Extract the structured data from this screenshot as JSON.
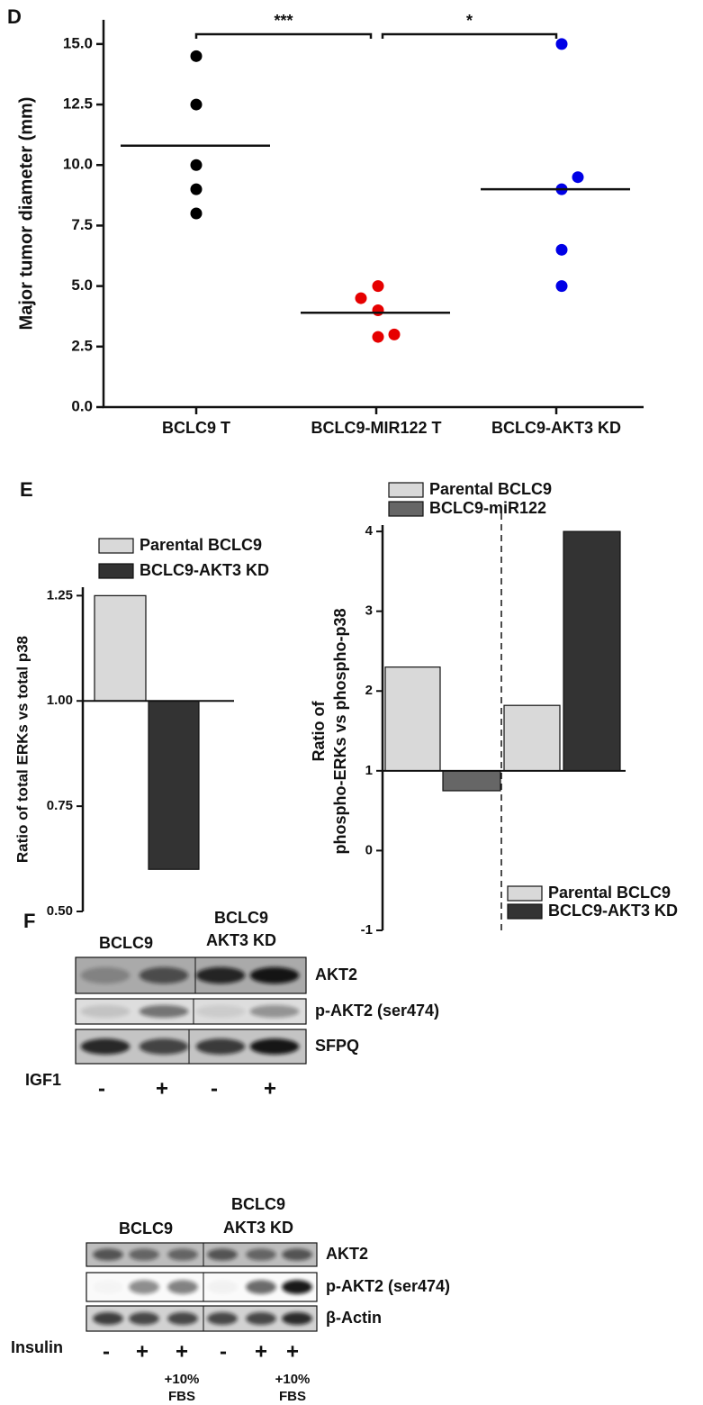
{
  "chart_data": [
    {
      "type": "dot",
      "panel_label": "D",
      "y_label": "Major tumor diameter (mm)",
      "categories": [
        "BCLC9 T",
        "BCLC9-MIR122 T",
        "BCLC9-AKT3 KD"
      ],
      "values": [
        [
          14.5,
          12.5,
          10,
          9,
          8
        ],
        [
          5,
          4.5,
          4,
          2.9,
          3
        ],
        [
          15,
          9.5,
          9,
          6.5,
          5
        ]
      ],
      "colors": [
        "#000000",
        "#e60000",
        "#0000e6"
      ],
      "means": [
        10.8,
        3.9,
        9.0
      ],
      "annotations": [
        "***",
        "*"
      ],
      "ylim": [
        0,
        16
      ],
      "yticks": [
        {
          "value": 0,
          "label": "0.0"
        },
        {
          "value": 2.5,
          "label": "2.5"
        },
        {
          "value": 5,
          "label": "5.0"
        },
        {
          "value": 7.5,
          "label": "7.5"
        },
        {
          "value": 10,
          "label": "10.0"
        },
        {
          "value": 12.5,
          "label": "12.5"
        },
        {
          "value": 15,
          "label": "15.0"
        }
      ]
    },
    {
      "type": "bar",
      "panel_label": "E",
      "y_label": "Ratio of total ERKs vs total p38",
      "baseline": 1,
      "categories": [
        null
      ],
      "series": [
        {
          "name": "Parental BCLC9",
          "color": "#d9d9d9",
          "values": [
            1.25
          ]
        },
        {
          "name": "BCLC9-AKT3 KD",
          "color": "#333333",
          "values": [
            0.6
          ]
        }
      ],
      "ylim": [
        0.5,
        1.27
      ],
      "yticks": [
        {
          "value": 0.5,
          "label": "0.50"
        },
        0.75,
        {
          "value": 1,
          "label": "1.00"
        },
        1.25
      ]
    },
    {
      "type": "bar",
      "y_label": [
        "Ratio of",
        "phospho-ERKs vs phospho-p38"
      ],
      "baseline": 1,
      "categories": [
        null,
        null
      ],
      "series": [
        {
          "name": "Parental BCLC9",
          "color": "#d9d9d9",
          "values": [
            2.3,
            null
          ]
        },
        {
          "name": "BCLC9-miR122",
          "color": "#666666",
          "values": [
            0.75,
            null
          ]
        },
        {
          "name": "Parental BCLC9",
          "color": "#d9d9d9",
          "values": [
            null,
            1.82
          ]
        },
        {
          "name": "BCLC9-AKT3 KD",
          "color": "#333333",
          "values": [
            null,
            4
          ]
        }
      ],
      "ylim": [
        -1,
        4.08
      ],
      "yticks": [
        -1,
        0,
        1,
        2,
        3,
        4
      ]
    }
  ],
  "blots": {
    "panel_label": "F",
    "panels": [
      {
        "column_headers": [
          [
            "BCLC9"
          ],
          [
            "BCLC9",
            "AKT3 KD"
          ]
        ],
        "rows": [
          "AKT2",
          "p-AKT2 (ser474)",
          "SFPQ"
        ],
        "treatment": "IGF1",
        "conditions": [
          "-",
          "+",
          "-",
          "+"
        ]
      },
      {
        "column_headers": [
          [
            "BCLC9"
          ],
          [
            "BCLC9",
            "AKT3 KD"
          ]
        ],
        "rows": [
          "AKT2",
          "p-AKT2 (ser474)",
          "β-Actin"
        ],
        "treatment": "Insulin",
        "conditions": [
          "-",
          "+",
          "+",
          "-",
          "+",
          "+"
        ],
        "notes": [
          null,
          null,
          [
            "+10%",
            "FBS"
          ],
          null,
          null,
          [
            "+10%",
            "FBS"
          ]
        ]
      }
    ]
  }
}
